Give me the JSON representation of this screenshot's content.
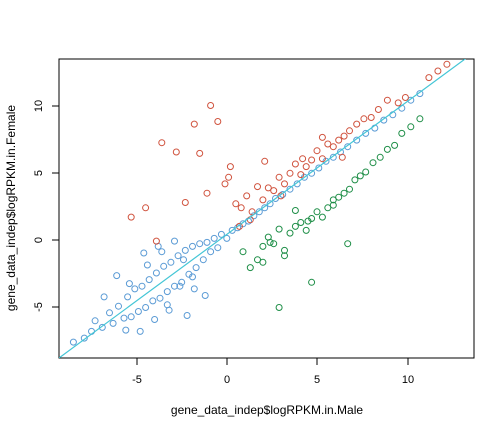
{
  "chart_data": {
    "type": "scatter",
    "title": "",
    "xlabel": "gene_data_indep$logRPKM.in.Male",
    "ylabel": "gene_data_indep$logRPKM.in.Female",
    "xlim": [
      -9,
      14
    ],
    "ylim": [
      -9,
      13.5
    ],
    "x_ticks": [
      -5,
      0,
      5,
      10
    ],
    "y_ticks": [
      -5,
      0,
      5,
      10
    ],
    "grid": false,
    "legend": "none",
    "colors": {
      "not_biased": "#5b9bd5",
      "female_biased": "#d0533e",
      "male_biased": "#1e8e47",
      "fit_line": "#44c6d6"
    },
    "series": [
      {
        "color": "#5b9bd5",
        "x": [
          -8.2,
          -7.6,
          -7.2,
          -7.0,
          -6.6,
          -6.2,
          -6.0,
          -5.7,
          -5.4,
          -5.2,
          -5.0,
          -4.8,
          -4.6,
          -4.4,
          -4.2,
          -4.0,
          -3.8,
          -3.6,
          -3.4,
          -3.2,
          -3.0,
          -2.8,
          -2.6,
          -2.4,
          -2.2,
          -2.0,
          -1.8,
          -1.6,
          -1.4,
          -1.2,
          -1.0,
          -0.8,
          -0.6,
          -0.4,
          -0.2,
          0.0,
          0.3,
          0.6,
          0.9,
          1.2,
          1.5,
          1.8,
          2.1,
          2.4,
          2.7,
          3.0,
          3.4,
          3.8,
          4.2,
          4.6,
          5.0,
          5.4,
          5.8,
          6.2,
          6.6,
          7.0,
          7.5,
          8.0,
          8.5,
          9.0,
          9.5,
          10.0,
          10.5,
          11.0,
          -6.5,
          -5.8,
          -5.1,
          -4.3,
          -3.5,
          -2.9,
          -2.1,
          -1.5,
          -0.9,
          -5.3,
          -4.5,
          -3.7,
          -3.0,
          -2.3,
          -1.6,
          -4.1,
          -3.3,
          -2.6,
          -1.9
        ],
        "y": [
          -7.8,
          -7.5,
          -7.0,
          -6.2,
          -6.7,
          -5.6,
          -6.4,
          -5.1,
          -6.0,
          -4.4,
          -5.9,
          -3.8,
          -5.5,
          -3.6,
          -5.2,
          -3.1,
          -4.7,
          -2.6,
          -4.5,
          -2.1,
          -4.0,
          -1.8,
          -3.6,
          -1.3,
          -3.3,
          -0.9,
          -2.7,
          -0.6,
          -2.2,
          -0.4,
          -1.6,
          -0.3,
          -1.0,
          0.0,
          -0.7,
          0.3,
          0.0,
          0.6,
          0.8,
          1.1,
          1.3,
          1.7,
          2.0,
          2.3,
          2.6,
          3.0,
          3.3,
          3.7,
          4.1,
          4.6,
          4.9,
          5.3,
          5.8,
          6.1,
          6.5,
          6.9,
          7.4,
          7.9,
          8.3,
          8.9,
          9.3,
          9.8,
          10.4,
          10.9,
          -4.4,
          -2.8,
          -3.4,
          -1.1,
          -0.6,
          -5.4,
          -1.6,
          -3.8,
          -4.3,
          -6.9,
          -7.0,
          -6.1,
          -5.0,
          -3.6,
          -2.9,
          -2.0,
          -1.0,
          -0.2,
          -5.8
        ]
      },
      {
        "color": "#d0533e",
        "x": [
          -5.0,
          -4.2,
          -3.6,
          -3.3,
          -2.5,
          -1.5,
          -1.2,
          -0.6,
          -0.2,
          0.2,
          0.5,
          0.8,
          1.1,
          1.4,
          1.7,
          2.0,
          2.3,
          2.6,
          2.9,
          3.2,
          3.5,
          3.8,
          4.1,
          4.4,
          4.7,
          5.0,
          5.3,
          5.6,
          5.9,
          6.2,
          6.5,
          6.8,
          7.1,
          7.5,
          7.9,
          8.3,
          8.7,
          9.2,
          9.8,
          10.2,
          11.5,
          12.0,
          12.5,
          -0.8,
          0.4,
          1.6,
          2.4,
          3.3,
          4.5,
          5.6,
          6.7,
          -2.0,
          1.0
        ],
        "y": [
          1.6,
          2.3,
          -0.2,
          7.2,
          6.5,
          8.6,
          6.4,
          10.0,
          8.8,
          4.1,
          5.4,
          2.6,
          2.3,
          3.2,
          2.0,
          3.9,
          2.9,
          3.8,
          3.6,
          4.6,
          4.1,
          4.9,
          5.6,
          4.8,
          5.4,
          5.9,
          6.6,
          6.0,
          7.1,
          6.9,
          7.4,
          7.7,
          8.1,
          8.6,
          9.0,
          9.1,
          9.7,
          10.4,
          10.2,
          10.6,
          12.1,
          12.6,
          13.1,
          3.4,
          4.6,
          1.4,
          5.8,
          3.2,
          6.0,
          7.6,
          6.1,
          2.7,
          0.9
        ]
      },
      {
        "color": "#1e8e47",
        "x": [
          1.2,
          1.6,
          2.0,
          2.3,
          2.6,
          2.9,
          3.2,
          3.5,
          3.8,
          4.1,
          4.4,
          4.7,
          5.0,
          5.3,
          5.6,
          5.9,
          6.2,
          6.5,
          6.8,
          7.1,
          7.4,
          7.7,
          8.0,
          8.4,
          8.8,
          9.2,
          9.6,
          10.0,
          10.5,
          11.0,
          3.2,
          5.0,
          7.0,
          2.3,
          4.8,
          6.2,
          3.5,
          2.7,
          4.1
        ],
        "y": [
          -1.0,
          -2.2,
          -1.6,
          -0.6,
          0.1,
          -0.4,
          0.7,
          -0.9,
          0.4,
          0.9,
          1.2,
          0.6,
          1.5,
          2.0,
          1.6,
          2.3,
          2.9,
          3.1,
          3.4,
          3.7,
          4.4,
          4.7,
          5.0,
          5.7,
          6.1,
          6.7,
          7.0,
          7.9,
          8.4,
          9.0,
          -5.2,
          -3.3,
          -0.4,
          -1.8,
          1.3,
          2.5,
          -1.3,
          -0.3,
          2.1
        ]
      }
    ],
    "fit_line": {
      "x": [
        -9,
        14
      ],
      "y": [
        -9,
        14
      ]
    }
  }
}
